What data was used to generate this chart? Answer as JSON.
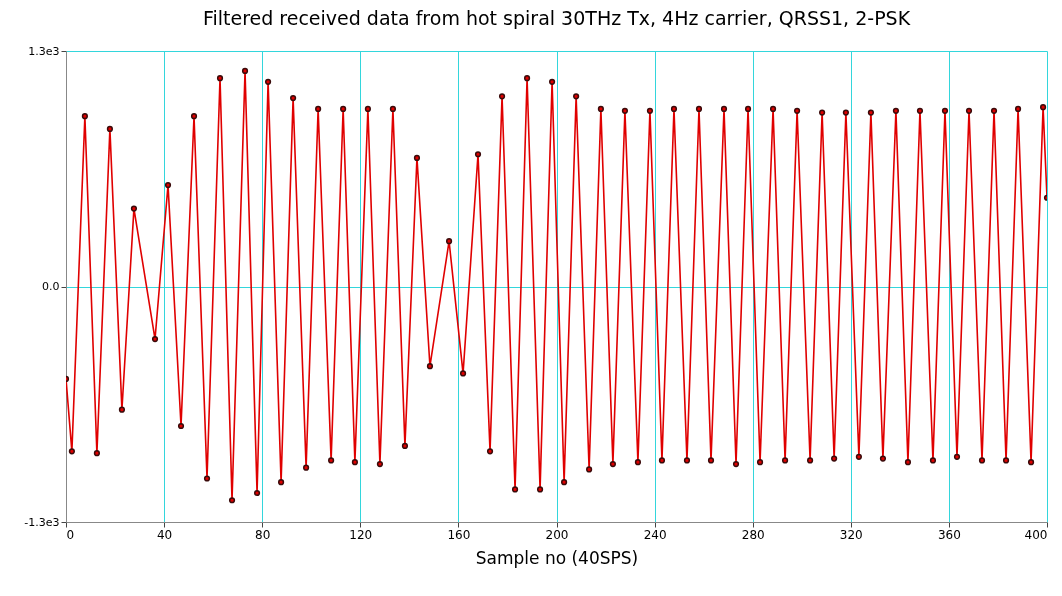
{
  "chart_data": {
    "type": "line",
    "title": "Filtered received data from hot spiral 30THz Tx, 4Hz carrier, QRSS1, 2-PSK",
    "xlabel": "Sample no (40SPS)",
    "x": [
      0,
      2.4,
      7.7,
      12.6,
      17.9,
      22.8,
      27.7,
      36.3,
      41.6,
      46.9,
      52.2,
      57.5,
      62.8,
      67.7,
      73.0,
      77.9,
      82.4,
      87.7,
      92.6,
      97.9,
      102.8,
      108.1,
      113.0,
      117.8,
      123.1,
      128.0,
      133.3,
      138.2,
      143.1,
      148.4,
      156.2,
      161.9,
      168.0,
      172.9,
      177.8,
      183.1,
      188.0,
      193.3,
      198.2,
      203.1,
      208.0,
      213.3,
      218.1,
      223.0,
      227.9,
      233.2,
      238.1,
      243.0,
      247.9,
      253.2,
      258.1,
      263.0,
      268.3,
      273.2,
      278.1,
      283.0,
      288.3,
      293.2,
      298.1,
      303.4,
      308.3,
      313.2,
      318.0,
      323.3,
      328.2,
      333.1,
      338.4,
      343.3,
      348.2,
      353.5,
      358.4,
      363.3,
      368.2,
      373.5,
      378.4,
      383.3,
      388.2,
      393.5,
      398.4,
      400
    ],
    "series": [
      {
        "color": "#e00000",
        "values": [
          -510,
          -910,
          940,
          -920,
          870,
          -680,
          430,
          -290,
          560,
          -770,
          940,
          -1060,
          1150,
          -1180,
          1190,
          -1140,
          1130,
          -1080,
          1040,
          -1000,
          980,
          -960,
          980,
          -970,
          980,
          -980,
          980,
          -880,
          710,
          -440,
          250,
          -480,
          730,
          -910,
          1050,
          -1120,
          1150,
          -1120,
          1130,
          -1080,
          1050,
          -1010,
          980,
          -980,
          970,
          -970,
          970,
          -960,
          980,
          -960,
          980,
          -960,
          980,
          -980,
          980,
          -970,
          980,
          -960,
          970,
          -960,
          960,
          -950,
          960,
          -940,
          960,
          -950,
          970,
          -970,
          970,
          -960,
          970,
          -940,
          970,
          -960,
          970,
          -960,
          980,
          -970,
          990,
          490
        ]
      }
    ],
    "xlim": [
      0,
      400
    ],
    "xticks": [
      0,
      40,
      80,
      120,
      160,
      200,
      240,
      280,
      320,
      360,
      400
    ],
    "ylim": [
      -1300,
      1300
    ],
    "yticks": [
      {
        "value": -1300,
        "label": "-1.3e3"
      },
      {
        "value": 0,
        "label": "0.0"
      },
      {
        "value": 1300,
        "label": "1.3e3"
      }
    ],
    "grid": true,
    "marker": "circle",
    "line_style": "solid"
  }
}
